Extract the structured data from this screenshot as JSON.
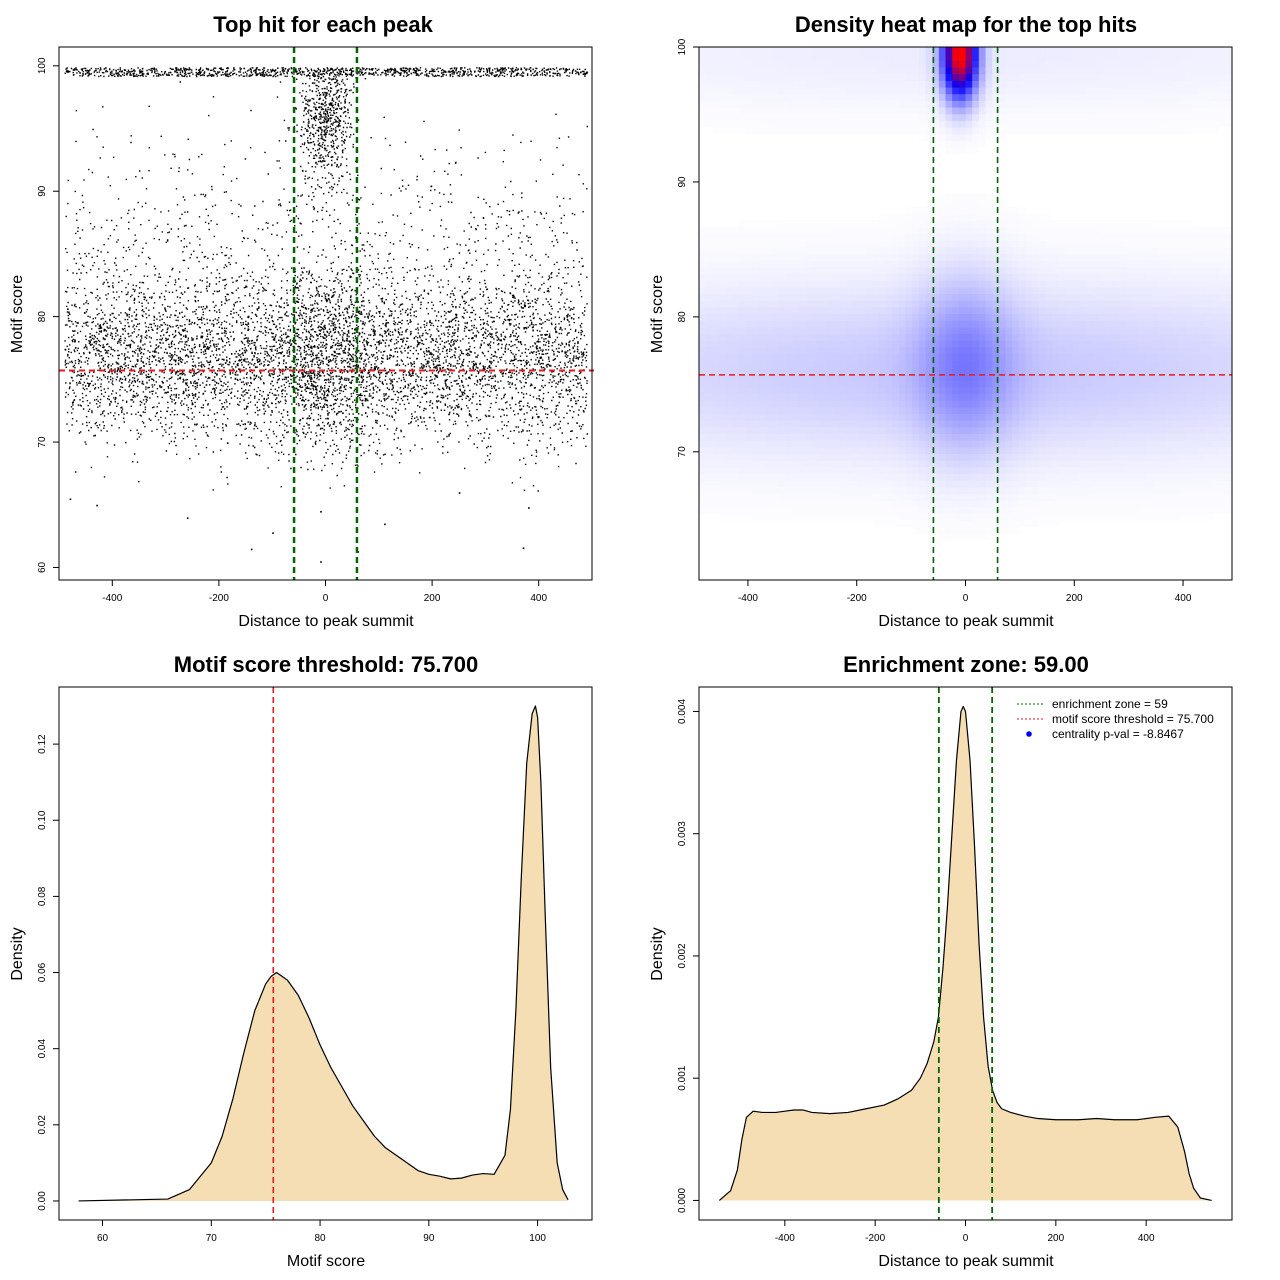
{
  "chart_data": [
    {
      "type": "scatter",
      "title": "Top hit for each peak",
      "xlabel": "Distance to peak summit",
      "ylabel": "Motif score",
      "xlim": [
        -500,
        500
      ],
      "ylim": [
        59,
        101.5
      ],
      "xticks": [
        -400,
        -200,
        0,
        200,
        400
      ],
      "yticks": [
        60,
        70,
        80,
        90,
        100
      ],
      "vlines": [
        -59,
        59
      ],
      "hline": 75.7,
      "colors": {
        "points": "#000000",
        "vlines": "#006400",
        "hline": "#e41a1c"
      },
      "distribution": {
        "components": [
          {
            "weight": 0.55,
            "x": "uniform",
            "x_range": [
              -490,
              490
            ],
            "y_mean": 76.5,
            "y_sd": 3.2
          },
          {
            "weight": 0.12,
            "x": "uniform",
            "x_range": [
              -490,
              490
            ],
            "y_mean": 84,
            "y_sd": 5
          },
          {
            "weight": 0.12,
            "x": "uniform",
            "x_range": [
              -490,
              490
            ],
            "y_range": [
              99.2,
              99.9
            ]
          },
          {
            "weight": 0.08,
            "x_mean": 0,
            "x_sd": 25,
            "y_mean": 96,
            "y_sd": 3
          },
          {
            "weight": 0.08,
            "x_mean": 0,
            "x_sd": 60,
            "y_mean": 77,
            "y_sd": 4
          }
        ],
        "outliers": [
          {
            "x": -480,
            "y": 65.5
          },
          {
            "x": -430,
            "y": 65
          },
          {
            "x": -260,
            "y": 64
          },
          {
            "x": -140,
            "y": 61.5
          },
          {
            "x": -100,
            "y": 62.8
          },
          {
            "x": -10,
            "y": 64.5
          },
          {
            "x": -10,
            "y": 60.5
          },
          {
            "x": 110,
            "y": 63.5
          },
          {
            "x": 60,
            "y": 61.3
          },
          {
            "x": 370,
            "y": 61.6
          },
          {
            "x": 380,
            "y": 64.8
          },
          {
            "x": 250,
            "y": 66
          }
        ]
      }
    },
    {
      "type": "heatmap",
      "title": "Density heat map for the top hits",
      "xlabel": "Distance to peak summit",
      "ylabel": "Motif score",
      "xlim": [
        -490,
        490
      ],
      "ylim": [
        60.5,
        100
      ],
      "xticks": [
        -400,
        -200,
        0,
        200,
        400
      ],
      "yticks": [
        70,
        80,
        90,
        100
      ],
      "vlines": [
        -59,
        59
      ],
      "hline": 75.7,
      "colors": {
        "low": "#ffffff",
        "mid": "#0000ff",
        "high": "#ff0000",
        "vlines": "#006400",
        "hline": "#e41a1c"
      },
      "density_peaks": [
        {
          "x": -10,
          "y": 99.5,
          "sx": 22,
          "sy": 2.2,
          "intensity": 1.0
        },
        {
          "x": 0,
          "y": 76.5,
          "sx": 60,
          "sy": 4.5,
          "intensity": 0.18
        },
        {
          "x": 0,
          "y": 76,
          "sx": 600,
          "sy": 4.5,
          "intensity": 0.12
        },
        {
          "x": 0,
          "y": 99.5,
          "sx": 600,
          "sy": 3,
          "intensity": 0.04
        }
      ]
    },
    {
      "type": "area",
      "title": "Motif score threshold: 75.700",
      "xlabel": "Motif score",
      "ylabel": "Density",
      "xlim": [
        56,
        105
      ],
      "ylim": [
        -0.005,
        0.135
      ],
      "xticks": [
        60,
        70,
        80,
        90,
        100
      ],
      "yticks": [
        0.0,
        0.02,
        0.04,
        0.06,
        0.08,
        0.1,
        0.12
      ],
      "ytick_labels": [
        "0.00",
        "0.02",
        "0.04",
        "0.06",
        "0.08",
        "0.10",
        "0.12"
      ],
      "vline": 75.7,
      "fill": "#f5deb3",
      "colors": {
        "vline": "#e41a1c"
      },
      "x": [
        57.8,
        66,
        68,
        70,
        71,
        72,
        73,
        74,
        75,
        75.5,
        76,
        77,
        78,
        79,
        80,
        81,
        82,
        83,
        84,
        85,
        86,
        87,
        88,
        89,
        90,
        91,
        92,
        93,
        94,
        95,
        96,
        97,
        97.5,
        98,
        98.5,
        99,
        99.5,
        99.8,
        100,
        100.3,
        100.7,
        101.2,
        101.8,
        102.3,
        102.8
      ],
      "y": [
        0.0,
        0.0005,
        0.003,
        0.01,
        0.017,
        0.027,
        0.039,
        0.05,
        0.057,
        0.059,
        0.06,
        0.058,
        0.054,
        0.048,
        0.041,
        0.035,
        0.03,
        0.025,
        0.021,
        0.017,
        0.014,
        0.012,
        0.01,
        0.008,
        0.007,
        0.0065,
        0.0058,
        0.006,
        0.0068,
        0.0072,
        0.007,
        0.012,
        0.024,
        0.05,
        0.085,
        0.115,
        0.128,
        0.13,
        0.127,
        0.11,
        0.075,
        0.035,
        0.01,
        0.003,
        0.0003
      ]
    },
    {
      "type": "area",
      "title": "Enrichment zone: 59.00",
      "xlabel": "Distance to peak summit",
      "ylabel": "Density",
      "xlim": [
        -590,
        590
      ],
      "ylim": [
        -0.00016,
        0.0042
      ],
      "xticks": [
        -400,
        -200,
        0,
        200,
        400
      ],
      "yticks": [
        0.0,
        0.001,
        0.002,
        0.003,
        0.004
      ],
      "ytick_labels": [
        "0.000",
        "0.001",
        "0.002",
        "0.003",
        "0.004"
      ],
      "vlines": [
        -59,
        59
      ],
      "fill": "#f5deb3",
      "colors": {
        "vlines": "#006400",
        "threshold": "#e41a1c",
        "pval": "#0000ff"
      },
      "x": [
        -545,
        -520,
        -505,
        -495,
        -485,
        -470,
        -450,
        -420,
        -400,
        -380,
        -360,
        -340,
        -300,
        -260,
        -220,
        -180,
        -150,
        -120,
        -100,
        -85,
        -70,
        -60,
        -50,
        -40,
        -30,
        -20,
        -10,
        -5,
        0,
        10,
        20,
        30,
        40,
        50,
        60,
        70,
        80,
        100,
        130,
        160,
        200,
        250,
        290,
        330,
        380,
        420,
        450,
        470,
        485,
        495,
        505,
        520,
        545
      ],
      "y": [
        0.0,
        8e-05,
        0.00025,
        0.0005,
        0.00068,
        0.00073,
        0.00072,
        0.00072,
        0.00073,
        0.00074,
        0.00074,
        0.00072,
        0.00071,
        0.00072,
        0.00075,
        0.00078,
        0.00083,
        0.0009,
        0.001,
        0.00112,
        0.0013,
        0.0015,
        0.0019,
        0.0024,
        0.003,
        0.0036,
        0.004,
        0.00404,
        0.004,
        0.0036,
        0.0029,
        0.0021,
        0.0015,
        0.0011,
        0.0009,
        0.0008,
        0.00075,
        0.00072,
        0.00069,
        0.00067,
        0.00066,
        0.00066,
        0.00067,
        0.00066,
        0.00066,
        0.00068,
        0.00069,
        0.0006,
        0.0004,
        0.00022,
        0.0001,
        2e-05,
        0.0
      ],
      "legend": {
        "position": "top-right",
        "entries": [
          "enrichment zone = 59",
          "motif score threshold = 75.700",
          "centrality p-val = -8.8467"
        ]
      }
    }
  ]
}
